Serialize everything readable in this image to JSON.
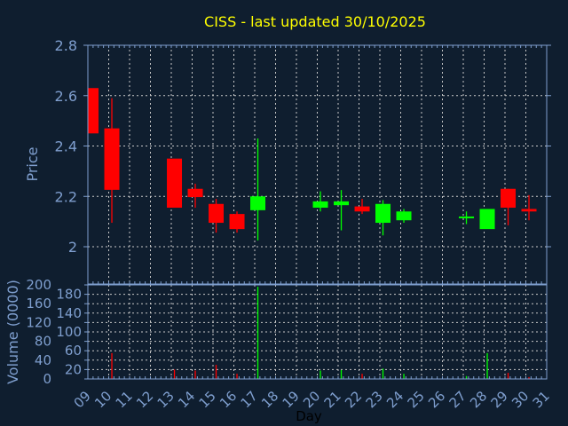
{
  "chart_data": {
    "type": "candlestick",
    "title": "CISS - last updated 30/10/2025",
    "xlabel": "Day",
    "ylabel": "Price",
    "volume_label": "Volume (0000)",
    "xlim": [
      9,
      31
    ],
    "ylim": [
      2.0,
      2.8
    ],
    "volume_ylim": [
      0,
      200
    ],
    "x_ticks": [
      "09",
      "10",
      "11",
      "12",
      "13",
      "14",
      "15",
      "16",
      "17",
      "18",
      "19",
      "20",
      "21",
      "22",
      "23",
      "24",
      "25",
      "26",
      "27",
      "28",
      "29",
      "30",
      "31"
    ],
    "y_ticks": [
      "2",
      "2.2",
      "2.4",
      "2.6",
      "2.8"
    ],
    "volume_ticks": [
      "0",
      "20",
      "40",
      "60",
      "80",
      "100",
      "120",
      "140",
      "160",
      "180",
      "200"
    ],
    "grid": true,
    "colors": {
      "background": "#0f1e2f",
      "axis": "#7f9fcf",
      "grid": "#c8c8c8",
      "up": "#00ff00",
      "down": "#ff0000",
      "title": "#ffff00",
      "label": "#7f9fcf",
      "xlabel": "#000000"
    },
    "candles": [
      {
        "day": 9,
        "open": 2.63,
        "close": 2.45,
        "high": 2.63,
        "low": 2.45,
        "volume": 0
      },
      {
        "day": 10,
        "open": 2.47,
        "close": 2.226,
        "high": 2.59,
        "low": 2.095,
        "volume": 55
      },
      {
        "day": 13,
        "open": 2.35,
        "close": 2.155,
        "high": 2.35,
        "low": 2.155,
        "volume": 20
      },
      {
        "day": 14,
        "open": 2.23,
        "close": 2.197,
        "high": 2.25,
        "low": 2.155,
        "volume": 18
      },
      {
        "day": 15,
        "open": 2.17,
        "close": 2.095,
        "high": 2.19,
        "low": 2.056,
        "volume": 30
      },
      {
        "day": 16,
        "open": 2.13,
        "close": 2.07,
        "high": 2.14,
        "low": 2.056,
        "volume": 11
      },
      {
        "day": 17,
        "open": 2.145,
        "close": 2.2,
        "high": 2.43,
        "low": 2.025,
        "volume": 196
      },
      {
        "day": 20,
        "open": 2.155,
        "close": 2.18,
        "high": 2.22,
        "low": 2.14,
        "volume": 18
      },
      {
        "day": 21,
        "open": 2.165,
        "close": 2.18,
        "high": 2.225,
        "low": 2.065,
        "volume": 19
      },
      {
        "day": 22,
        "open": 2.16,
        "close": 2.14,
        "high": 2.19,
        "low": 2.13,
        "volume": 11
      },
      {
        "day": 23,
        "open": 2.095,
        "close": 2.17,
        "high": 2.185,
        "low": 2.045,
        "volume": 22
      },
      {
        "day": 24,
        "open": 2.105,
        "close": 2.14,
        "high": 2.15,
        "low": 2.095,
        "volume": 11
      },
      {
        "day": 27,
        "open": 2.115,
        "close": 2.12,
        "high": 2.14,
        "low": 2.09,
        "volume": 6
      },
      {
        "day": 28,
        "open": 2.07,
        "close": 2.15,
        "high": 2.15,
        "low": 2.07,
        "volume": 55
      },
      {
        "day": 29,
        "open": 2.23,
        "close": 2.155,
        "high": 2.23,
        "low": 2.085,
        "volume": 13
      },
      {
        "day": 30,
        "open": 2.15,
        "close": 2.14,
        "high": 2.205,
        "low": 2.105,
        "volume": 4
      }
    ]
  }
}
